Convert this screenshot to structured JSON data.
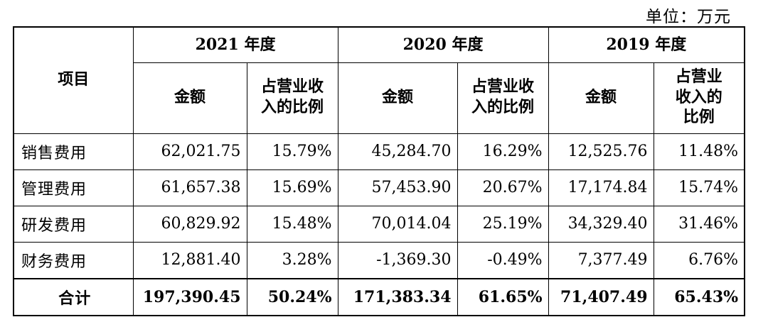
{
  "unit_label": "单位：万元",
  "header": {
    "item": "项目",
    "years": [
      "2021 年度",
      "2020 年度",
      "2019 年度"
    ],
    "amount": "金额",
    "ratio_2021": "占营业收\n入的比例",
    "ratio_2020": "占营业收\n入的比例",
    "ratio_2019": "占营业\n收入的\n比例"
  },
  "rows": [
    {
      "label": "销售费用",
      "values": [
        "62,021.75",
        "15.79%",
        "45,284.70",
        "16.29%",
        "12,525.76",
        "11.48%"
      ]
    },
    {
      "label": "管理费用",
      "values": [
        "61,657.38",
        "15.69%",
        "57,453.90",
        "20.67%",
        "17,174.84",
        "15.74%"
      ]
    },
    {
      "label": "研发费用",
      "values": [
        "60,829.92",
        "15.48%",
        "70,014.04",
        "25.19%",
        "34,329.40",
        "31.46%"
      ]
    },
    {
      "label": "财务费用",
      "values": [
        "12,881.40",
        "3.28%",
        "-1,369.30",
        "-0.49%",
        "7,377.49",
        "6.76%"
      ]
    }
  ],
  "total": {
    "label": "合计",
    "values": [
      "197,390.45",
      "50.24%",
      "171,383.34",
      "61.65%",
      "71,407.49",
      "65.43%"
    ]
  }
}
